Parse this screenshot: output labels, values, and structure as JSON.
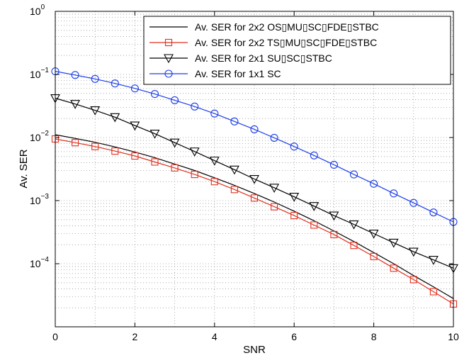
{
  "chart_data": {
    "type": "line",
    "xlabel": "SNR",
    "ylabel": "Av. SER",
    "xlim": [
      0,
      10
    ],
    "ylim": [
      1e-05,
      1
    ],
    "yscale": "log",
    "grid": true,
    "legend_position": "top-right",
    "x_ticks": [
      "0",
      "2",
      "4",
      "6",
      "8",
      "10"
    ],
    "y_ticks": [
      {
        "base": "10",
        "exp": "0",
        "value": 1
      },
      {
        "base": "10",
        "exp": "−1",
        "value": 0.1
      },
      {
        "base": "10",
        "exp": "−2",
        "value": 0.01
      },
      {
        "base": "10",
        "exp": "−3",
        "value": 0.001
      },
      {
        "base": "10",
        "exp": "−4",
        "value": 0.0001
      }
    ],
    "x": [
      0,
      0.5,
      1,
      1.5,
      2,
      2.5,
      3,
      3.5,
      4,
      4.5,
      5,
      5.5,
      6,
      6.5,
      7,
      7.5,
      8,
      8.5,
      9,
      9.5,
      10
    ],
    "series": [
      {
        "name": "Av. SER for 2x2 OS▯MU▯SC▯FDE▯STBC",
        "color": "#000000",
        "marker": "none",
        "values": [
          0.0111,
          0.0097,
          0.0084,
          0.0071,
          0.0059,
          0.0048,
          0.0038,
          0.003,
          0.0023,
          0.00175,
          0.0013,
          0.00095,
          0.00068,
          0.00048,
          0.00033,
          0.000225,
          0.00015,
          0.0001,
          6.5e-05,
          4.3e-05,
          2.8e-05
        ]
      },
      {
        "name": "Av. SER for 2x2 TS▯MU▯SC▯FDE▯STBC",
        "color": "#e0301e",
        "marker": "square",
        "values": [
          0.0095,
          0.0083,
          0.0072,
          0.0061,
          0.0051,
          0.0041,
          0.0033,
          0.0026,
          0.002,
          0.0015,
          0.0011,
          0.0008,
          0.00058,
          0.00041,
          0.00029,
          0.000195,
          0.00013,
          8.5e-05,
          5.6e-05,
          3.6e-05,
          2.3e-05
        ]
      },
      {
        "name": "Av. SER for 2x1 SU▯SC▯STBC",
        "color": "#000000",
        "marker": "triangle-down",
        "values": [
          0.042,
          0.034,
          0.027,
          0.021,
          0.0155,
          0.0115,
          0.0083,
          0.006,
          0.0043,
          0.0031,
          0.0022,
          0.0016,
          0.00115,
          0.00082,
          0.00058,
          0.00042,
          0.0003,
          0.000215,
          0.000155,
          0.000115,
          8.5e-05
        ]
      },
      {
        "name": "Av. SER for 1x1 SC",
        "color": "#1d3ee8",
        "marker": "circle",
        "values": [
          0.112,
          0.098,
          0.085,
          0.072,
          0.06,
          0.049,
          0.039,
          0.031,
          0.024,
          0.018,
          0.0135,
          0.0099,
          0.0072,
          0.0052,
          0.0037,
          0.0026,
          0.00185,
          0.0013,
          0.00092,
          0.00065,
          0.00046
        ]
      }
    ]
  }
}
